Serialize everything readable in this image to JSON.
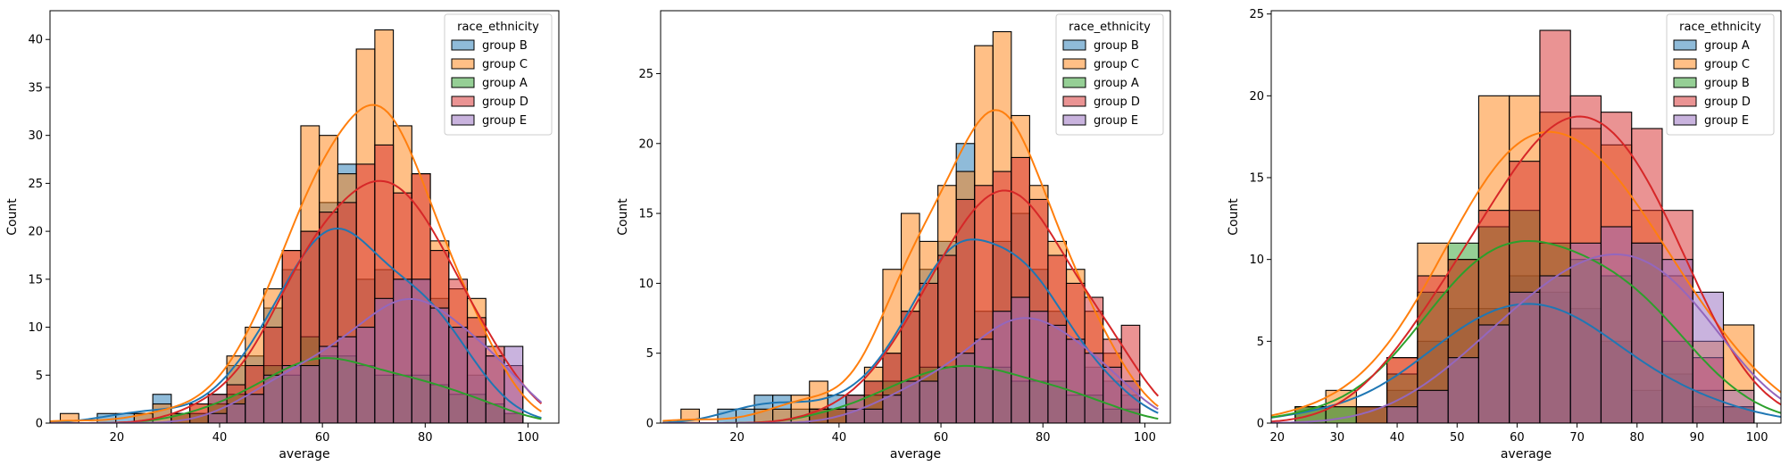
{
  "chart_data": [
    {
      "type": "histogram",
      "xlabel": "average",
      "ylabel": "Count",
      "xlim": [
        7,
        106
      ],
      "ylim": [
        0,
        43
      ],
      "xticks": [
        20,
        40,
        60,
        80,
        100
      ],
      "yticks": [
        0,
        5,
        10,
        15,
        20,
        25,
        30,
        35,
        40
      ],
      "bin_width": 3.6,
      "bin_starts": [
        9,
        12.6,
        16.2,
        19.8,
        23.4,
        27,
        30.6,
        34.2,
        37.8,
        41.4,
        45,
        48.6,
        52.2,
        55.8,
        59.4,
        63,
        66.6,
        70.2,
        73.8,
        77.4,
        81,
        84.6,
        88.2,
        91.8,
        95.4
      ],
      "legend": {
        "title": "race_ethnicity",
        "position": "upper right"
      },
      "series": [
        {
          "name": "group B",
          "color": "#1f77b4",
          "values": [
            0,
            0,
            1,
            1,
            1,
            3,
            0,
            1,
            3,
            6,
            7,
            12,
            16,
            20,
            23,
            27,
            15,
            16,
            15,
            15,
            13,
            10,
            5,
            2,
            1
          ]
        },
        {
          "name": "group C",
          "color": "#ff7f0e",
          "values": [
            1,
            0,
            0,
            0,
            1,
            2,
            1,
            2,
            2,
            7,
            10,
            14,
            18,
            31,
            30,
            26,
            39,
            41,
            31,
            26,
            19,
            14,
            13,
            7,
            1
          ]
        },
        {
          "name": "group A",
          "color": "#2ca02c",
          "values": [
            0,
            0,
            0,
            0,
            0,
            0,
            1,
            1,
            2,
            3,
            3,
            6,
            5,
            9,
            7,
            7,
            6,
            5,
            5,
            5,
            4,
            3,
            3,
            2,
            1
          ]
        },
        {
          "name": "group D",
          "color": "#d62728",
          "values": [
            0,
            0,
            0,
            0,
            0,
            0,
            1,
            2,
            3,
            4,
            6,
            10,
            18,
            20,
            22,
            23,
            27,
            29,
            24,
            26,
            18,
            15,
            11,
            8,
            6
          ]
        },
        {
          "name": "group E",
          "color": "#9467bd",
          "values": [
            0,
            0,
            0,
            0,
            0,
            0,
            0,
            0,
            1,
            2,
            3,
            5,
            6,
            6,
            8,
            9,
            10,
            13,
            15,
            15,
            12,
            10,
            9,
            7,
            8
          ]
        }
      ]
    },
    {
      "type": "histogram",
      "xlabel": "average",
      "ylabel": "Count",
      "xlim": [
        5,
        105
      ],
      "ylim": [
        0,
        29.5
      ],
      "xticks": [
        20,
        40,
        60,
        80,
        100
      ],
      "yticks": [
        0,
        5,
        10,
        15,
        20,
        25
      ],
      "bin_width": 3.6,
      "bin_starts": [
        9,
        12.6,
        16.2,
        19.8,
        23.4,
        27,
        30.6,
        34.2,
        37.8,
        41.4,
        45,
        48.6,
        52.2,
        55.8,
        59.4,
        63,
        66.6,
        70.2,
        73.8,
        77.4,
        81,
        84.6,
        88.2,
        91.8,
        95.4
      ],
      "legend": {
        "title": "race_ethnicity",
        "position": "upper right"
      },
      "series": [
        {
          "name": "group B",
          "color": "#1f77b4",
          "values": [
            0,
            0,
            1,
            1,
            2,
            2,
            1,
            1,
            2,
            2,
            3,
            5,
            8,
            11,
            13,
            20,
            8,
            13,
            15,
            11,
            8,
            6,
            4,
            3,
            2
          ]
        },
        {
          "name": "group C",
          "color": "#ff7f0e",
          "values": [
            1,
            0,
            0,
            0,
            1,
            1,
            2,
            3,
            1,
            1,
            4,
            11,
            15,
            13,
            17,
            18,
            27,
            28,
            22,
            17,
            13,
            11,
            8,
            5,
            3
          ]
        },
        {
          "name": "group A",
          "color": "#2ca02c",
          "values": [
            0,
            0,
            0,
            0,
            0,
            0,
            0,
            1,
            1,
            1,
            2,
            3,
            3,
            4,
            4,
            5,
            4,
            4,
            3,
            3,
            3,
            2,
            2,
            1,
            1
          ]
        },
        {
          "name": "group D",
          "color": "#d62728",
          "values": [
            0,
            0,
            0,
            0,
            0,
            0,
            0,
            1,
            1,
            2,
            3,
            5,
            8,
            10,
            12,
            16,
            17,
            18,
            19,
            16,
            12,
            10,
            9,
            6,
            7
          ]
        },
        {
          "name": "group E",
          "color": "#9467bd",
          "values": [
            0,
            0,
            0,
            0,
            0,
            0,
            0,
            0,
            0,
            1,
            1,
            2,
            3,
            3,
            4,
            5,
            6,
            8,
            9,
            8,
            7,
            6,
            5,
            4,
            3
          ]
        }
      ]
    },
    {
      "type": "histogram",
      "xlabel": "average",
      "ylabel": "Count",
      "xlim": [
        19,
        104
      ],
      "ylim": [
        0,
        25.2
      ],
      "xticks": [
        20,
        30,
        40,
        50,
        60,
        70,
        80,
        90,
        100
      ],
      "yticks": [
        0,
        5,
        10,
        15,
        20,
        25
      ],
      "bin_width": 5.1,
      "bin_starts": [
        23,
        28.1,
        33.2,
        38.3,
        43.4,
        48.5,
        53.6,
        58.7,
        63.8,
        68.9,
        74,
        79.1,
        84.2,
        89.3,
        94.4
      ],
      "legend": {
        "title": "race_ethnicity",
        "position": "upper right"
      },
      "series": [
        {
          "name": "group A",
          "color": "#1f77b4",
          "values": [
            1,
            1,
            1,
            2,
            5,
            7,
            7,
            9,
            8,
            7,
            5,
            2,
            3,
            1,
            1
          ]
        },
        {
          "name": "group C",
          "color": "#ff7f0e",
          "values": [
            1,
            2,
            1,
            4,
            11,
            10,
            20,
            20,
            19,
            18,
            17,
            13,
            9,
            5,
            6
          ]
        },
        {
          "name": "group B",
          "color": "#2ca02c",
          "values": [
            1,
            1,
            1,
            3,
            8,
            11,
            12,
            13,
            11,
            10,
            9,
            11,
            5,
            2,
            1
          ]
        },
        {
          "name": "group D",
          "color": "#d62728",
          "values": [
            0,
            0,
            1,
            4,
            9,
            10,
            13,
            16,
            24,
            20,
            19,
            18,
            13,
            4,
            1
          ]
        },
        {
          "name": "group E",
          "color": "#9467bd",
          "values": [
            0,
            0,
            0,
            1,
            2,
            4,
            6,
            8,
            9,
            11,
            12,
            11,
            10,
            8,
            2
          ]
        }
      ]
    }
  ]
}
